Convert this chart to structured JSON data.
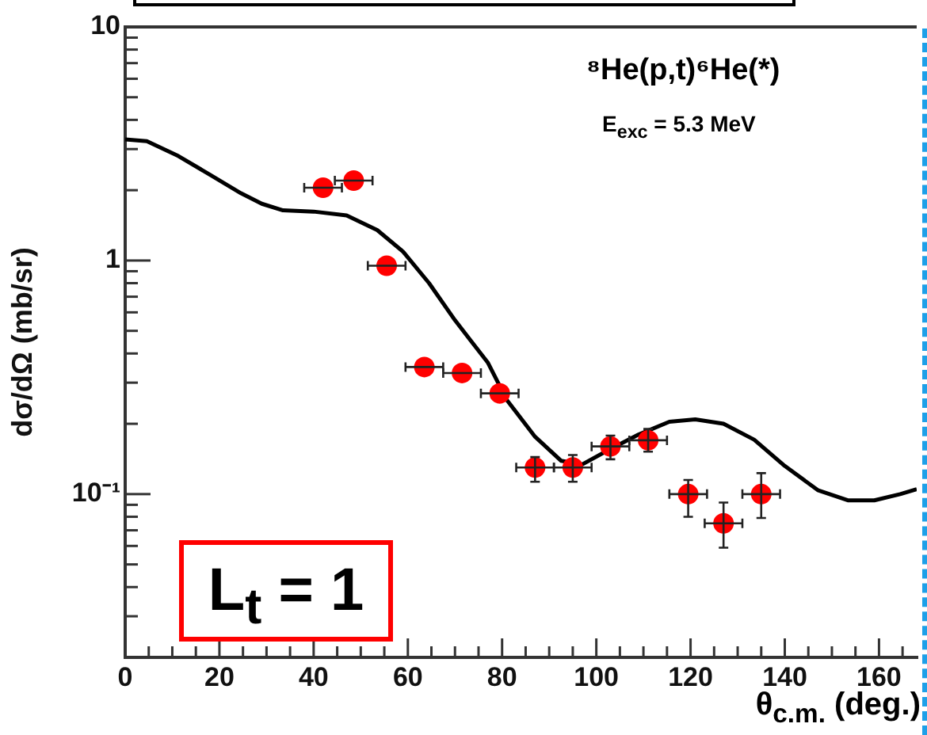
{
  "chart_data": {
    "type": "scatter",
    "xlabel": "θ$_{c.m.}$ (deg.)",
    "ylabel": "dσ/dΩ (mb/sr)",
    "log": "y",
    "grid": false,
    "legend": false,
    "xlim": [
      0,
      168
    ],
    "ylim": [
      0.02,
      10
    ],
    "xticks": [
      0,
      {
        "value": 5,
        "label": null
      },
      20,
      {
        "value": 10,
        "label": null
      },
      {
        "value": 15,
        "label": null
      },
      {
        "value": 25,
        "label": null
      },
      {
        "value": 30,
        "label": null
      },
      {
        "value": 35,
        "label": null
      },
      40,
      {
        "value": 45,
        "label": null
      },
      {
        "value": 50,
        "label": null
      },
      {
        "value": 55,
        "label": null
      },
      60,
      {
        "value": 65,
        "label": null
      },
      {
        "value": 70,
        "label": null
      },
      {
        "value": 75,
        "label": null
      },
      80,
      {
        "value": 85,
        "label": null
      },
      {
        "value": 90,
        "label": null
      },
      {
        "value": 95,
        "label": null
      },
      100,
      {
        "value": 105,
        "label": null
      },
      {
        "value": 110,
        "label": null
      },
      {
        "value": 115,
        "label": null
      },
      120,
      {
        "value": 125,
        "label": null
      },
      {
        "value": 130,
        "label": null
      },
      {
        "value": 135,
        "label": null
      },
      140,
      {
        "value": 145,
        "label": null
      },
      {
        "value": 150,
        "label": null
      },
      {
        "value": 155,
        "label": null
      },
      160,
      {
        "value": 165,
        "label": null
      }
    ],
    "yticks": [
      {
        "value": 0.02,
        "label": null
      },
      {
        "value": 0.03,
        "label": null
      },
      {
        "value": 0.04,
        "label": null
      },
      {
        "value": 0.05,
        "label": null
      },
      {
        "value": 0.06,
        "label": null
      },
      {
        "value": 0.07,
        "label": null
      },
      {
        "value": 0.08,
        "label": null
      },
      {
        "value": 0.09,
        "label": null
      },
      {
        "value": 0.1,
        "label": "10⁻¹"
      },
      {
        "value": 0.2,
        "label": null
      },
      {
        "value": 0.3,
        "label": null
      },
      {
        "value": 0.4,
        "label": null
      },
      {
        "value": 0.5,
        "label": null
      },
      {
        "value": 0.6,
        "label": null
      },
      {
        "value": 0.7,
        "label": null
      },
      {
        "value": 0.8,
        "label": null
      },
      {
        "value": 0.9,
        "label": null
      },
      1,
      {
        "value": 2,
        "label": null
      },
      {
        "value": 3,
        "label": null
      },
      {
        "value": 4,
        "label": null
      },
      {
        "value": 5,
        "label": null
      },
      {
        "value": 6,
        "label": null
      },
      {
        "value": 7,
        "label": null
      },
      {
        "value": 8,
        "label": null
      },
      {
        "value": 9,
        "label": null
      },
      10
    ],
    "annotations": [
      "⁸He(p,t)⁶He(*)",
      "E$_{exc}$ = 5.3 MeV",
      "L$_{t}$ = 1"
    ],
    "series": [
      {
        "marker": "circle",
        "color": "#ff0000",
        "x": [
          42,
          48.5,
          55.5,
          63.5,
          71.5,
          79.5,
          87,
          95,
          103,
          111,
          119.5,
          127,
          135
        ],
        "values": [
          2.05,
          2.2,
          0.95,
          0.35,
          0.33,
          0.27,
          0.13,
          0.13,
          0.16,
          0.17,
          0.1,
          0.075,
          0.1
        ],
        "errors": [
          null,
          null,
          null,
          null,
          null,
          null,
          [
            0.113,
            0.144
          ],
          [
            0.113,
            0.147
          ],
          [
            0.141,
            0.178
          ],
          [
            0.152,
            0.19
          ],
          [
            0.08,
            0.115
          ],
          [
            0.059,
            0.092
          ],
          [
            0.079,
            0.123
          ]
        ],
        "xerrors": [
          4,
          4,
          4,
          4,
          4,
          4,
          4,
          4,
          4,
          4,
          4,
          4,
          4
        ]
      },
      {
        "type": "line",
        "marker": "none",
        "color": "#000000",
        "x": [
          0,
          4.6,
          11.3,
          18,
          24.6,
          29,
          33.5,
          40,
          47,
          53.5,
          59,
          64.5,
          70,
          73.5,
          77,
          81,
          87,
          92.5,
          97,
          102.5,
          109,
          115.5,
          121,
          127,
          133.5,
          140,
          147,
          153.5,
          159,
          164.5,
          168
        ],
        "values": [
          3.3,
          3.24,
          2.8,
          2.33,
          1.94,
          1.75,
          1.64,
          1.62,
          1.56,
          1.35,
          1.09,
          0.8,
          0.555,
          0.45,
          0.365,
          0.253,
          0.176,
          0.139,
          0.134,
          0.154,
          0.18,
          0.204,
          0.209,
          0.2,
          0.171,
          0.132,
          0.104,
          0.094,
          0.094,
          0.1,
          0.105
        ]
      }
    ]
  }
}
